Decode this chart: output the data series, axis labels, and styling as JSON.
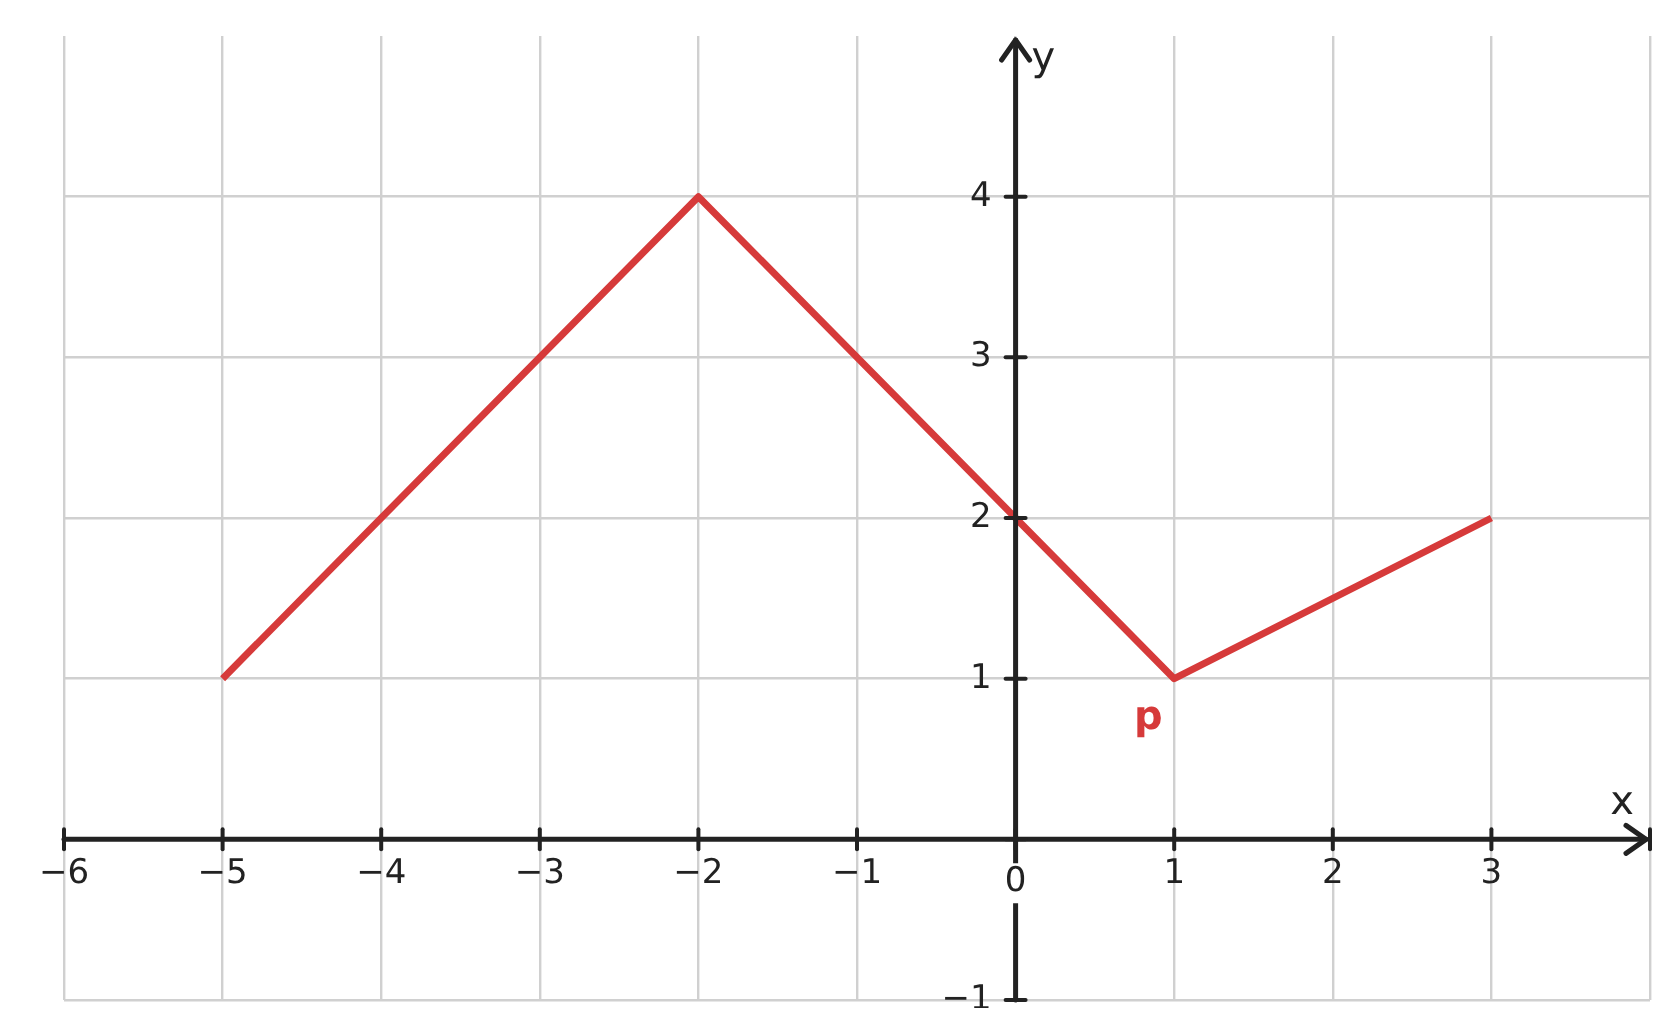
{
  "chart_data": {
    "type": "line",
    "xlabel": "x",
    "ylabel": "y",
    "x": [
      -5,
      -2,
      0,
      1,
      3
    ],
    "series": [
      {
        "color": "#d63a3a",
        "values": [
          1,
          4,
          2,
          1,
          2
        ]
      }
    ],
    "xlim": [
      -6,
      4
    ],
    "ylim": [
      -1,
      5
    ],
    "xticks": [
      -6,
      -5,
      -4,
      -3,
      -2,
      -1,
      0,
      1,
      2,
      3,
      {
        "value": 4,
        "label": null
      }
    ],
    "yticks": [
      -1,
      {
        "value": 0,
        "label": null
      },
      1,
      2,
      3,
      4
    ],
    "grid": true,
    "legend": false,
    "marker": "none",
    "line_style": "solid",
    "annotations": [
      {
        "text": "p",
        "x": 1,
        "y": 1
      }
    ]
  }
}
